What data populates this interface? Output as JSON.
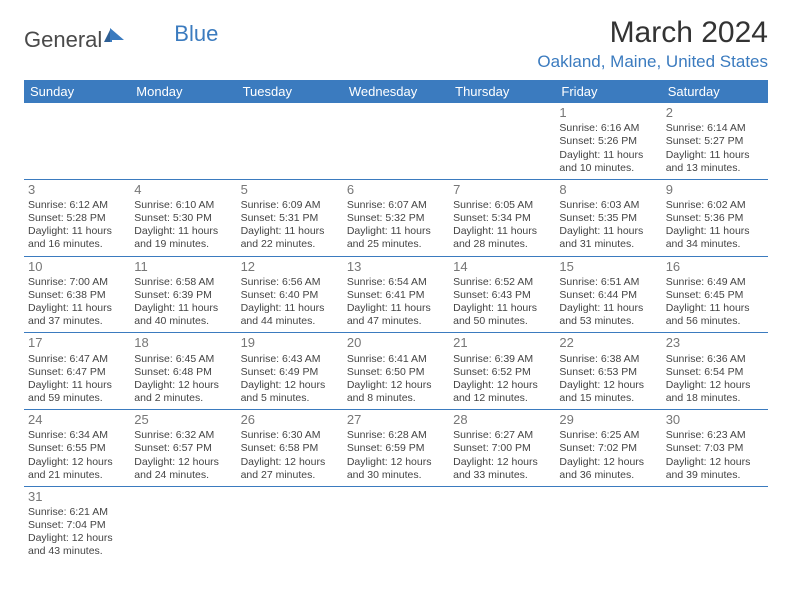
{
  "logo": {
    "text1": "General",
    "text2": "Blue"
  },
  "title": "March 2024",
  "location": "Oakland, Maine, United States",
  "header_color": "#3b7bbf",
  "daynames": [
    "Sunday",
    "Monday",
    "Tuesday",
    "Wednesday",
    "Thursday",
    "Friday",
    "Saturday"
  ],
  "weeks": [
    [
      null,
      null,
      null,
      null,
      null,
      {
        "n": "1",
        "sr": "6:16 AM",
        "ss": "5:26 PM",
        "dl": "11 hours and 10 minutes."
      },
      {
        "n": "2",
        "sr": "6:14 AM",
        "ss": "5:27 PM",
        "dl": "11 hours and 13 minutes."
      }
    ],
    [
      {
        "n": "3",
        "sr": "6:12 AM",
        "ss": "5:28 PM",
        "dl": "11 hours and 16 minutes."
      },
      {
        "n": "4",
        "sr": "6:10 AM",
        "ss": "5:30 PM",
        "dl": "11 hours and 19 minutes."
      },
      {
        "n": "5",
        "sr": "6:09 AM",
        "ss": "5:31 PM",
        "dl": "11 hours and 22 minutes."
      },
      {
        "n": "6",
        "sr": "6:07 AM",
        "ss": "5:32 PM",
        "dl": "11 hours and 25 minutes."
      },
      {
        "n": "7",
        "sr": "6:05 AM",
        "ss": "5:34 PM",
        "dl": "11 hours and 28 minutes."
      },
      {
        "n": "8",
        "sr": "6:03 AM",
        "ss": "5:35 PM",
        "dl": "11 hours and 31 minutes."
      },
      {
        "n": "9",
        "sr": "6:02 AM",
        "ss": "5:36 PM",
        "dl": "11 hours and 34 minutes."
      }
    ],
    [
      {
        "n": "10",
        "sr": "7:00 AM",
        "ss": "6:38 PM",
        "dl": "11 hours and 37 minutes."
      },
      {
        "n": "11",
        "sr": "6:58 AM",
        "ss": "6:39 PM",
        "dl": "11 hours and 40 minutes."
      },
      {
        "n": "12",
        "sr": "6:56 AM",
        "ss": "6:40 PM",
        "dl": "11 hours and 44 minutes."
      },
      {
        "n": "13",
        "sr": "6:54 AM",
        "ss": "6:41 PM",
        "dl": "11 hours and 47 minutes."
      },
      {
        "n": "14",
        "sr": "6:52 AM",
        "ss": "6:43 PM",
        "dl": "11 hours and 50 minutes."
      },
      {
        "n": "15",
        "sr": "6:51 AM",
        "ss": "6:44 PM",
        "dl": "11 hours and 53 minutes."
      },
      {
        "n": "16",
        "sr": "6:49 AM",
        "ss": "6:45 PM",
        "dl": "11 hours and 56 minutes."
      }
    ],
    [
      {
        "n": "17",
        "sr": "6:47 AM",
        "ss": "6:47 PM",
        "dl": "11 hours and 59 minutes."
      },
      {
        "n": "18",
        "sr": "6:45 AM",
        "ss": "6:48 PM",
        "dl": "12 hours and 2 minutes."
      },
      {
        "n": "19",
        "sr": "6:43 AM",
        "ss": "6:49 PM",
        "dl": "12 hours and 5 minutes."
      },
      {
        "n": "20",
        "sr": "6:41 AM",
        "ss": "6:50 PM",
        "dl": "12 hours and 8 minutes."
      },
      {
        "n": "21",
        "sr": "6:39 AM",
        "ss": "6:52 PM",
        "dl": "12 hours and 12 minutes."
      },
      {
        "n": "22",
        "sr": "6:38 AM",
        "ss": "6:53 PM",
        "dl": "12 hours and 15 minutes."
      },
      {
        "n": "23",
        "sr": "6:36 AM",
        "ss": "6:54 PM",
        "dl": "12 hours and 18 minutes."
      }
    ],
    [
      {
        "n": "24",
        "sr": "6:34 AM",
        "ss": "6:55 PM",
        "dl": "12 hours and 21 minutes."
      },
      {
        "n": "25",
        "sr": "6:32 AM",
        "ss": "6:57 PM",
        "dl": "12 hours and 24 minutes."
      },
      {
        "n": "26",
        "sr": "6:30 AM",
        "ss": "6:58 PM",
        "dl": "12 hours and 27 minutes."
      },
      {
        "n": "27",
        "sr": "6:28 AM",
        "ss": "6:59 PM",
        "dl": "12 hours and 30 minutes."
      },
      {
        "n": "28",
        "sr": "6:27 AM",
        "ss": "7:00 PM",
        "dl": "12 hours and 33 minutes."
      },
      {
        "n": "29",
        "sr": "6:25 AM",
        "ss": "7:02 PM",
        "dl": "12 hours and 36 minutes."
      },
      {
        "n": "30",
        "sr": "6:23 AM",
        "ss": "7:03 PM",
        "dl": "12 hours and 39 minutes."
      }
    ],
    [
      {
        "n": "31",
        "sr": "6:21 AM",
        "ss": "7:04 PM",
        "dl": "12 hours and 43 minutes."
      },
      null,
      null,
      null,
      null,
      null,
      null
    ]
  ],
  "labels": {
    "sr": "Sunrise: ",
    "ss": "Sunset: ",
    "dl": "Daylight: "
  }
}
